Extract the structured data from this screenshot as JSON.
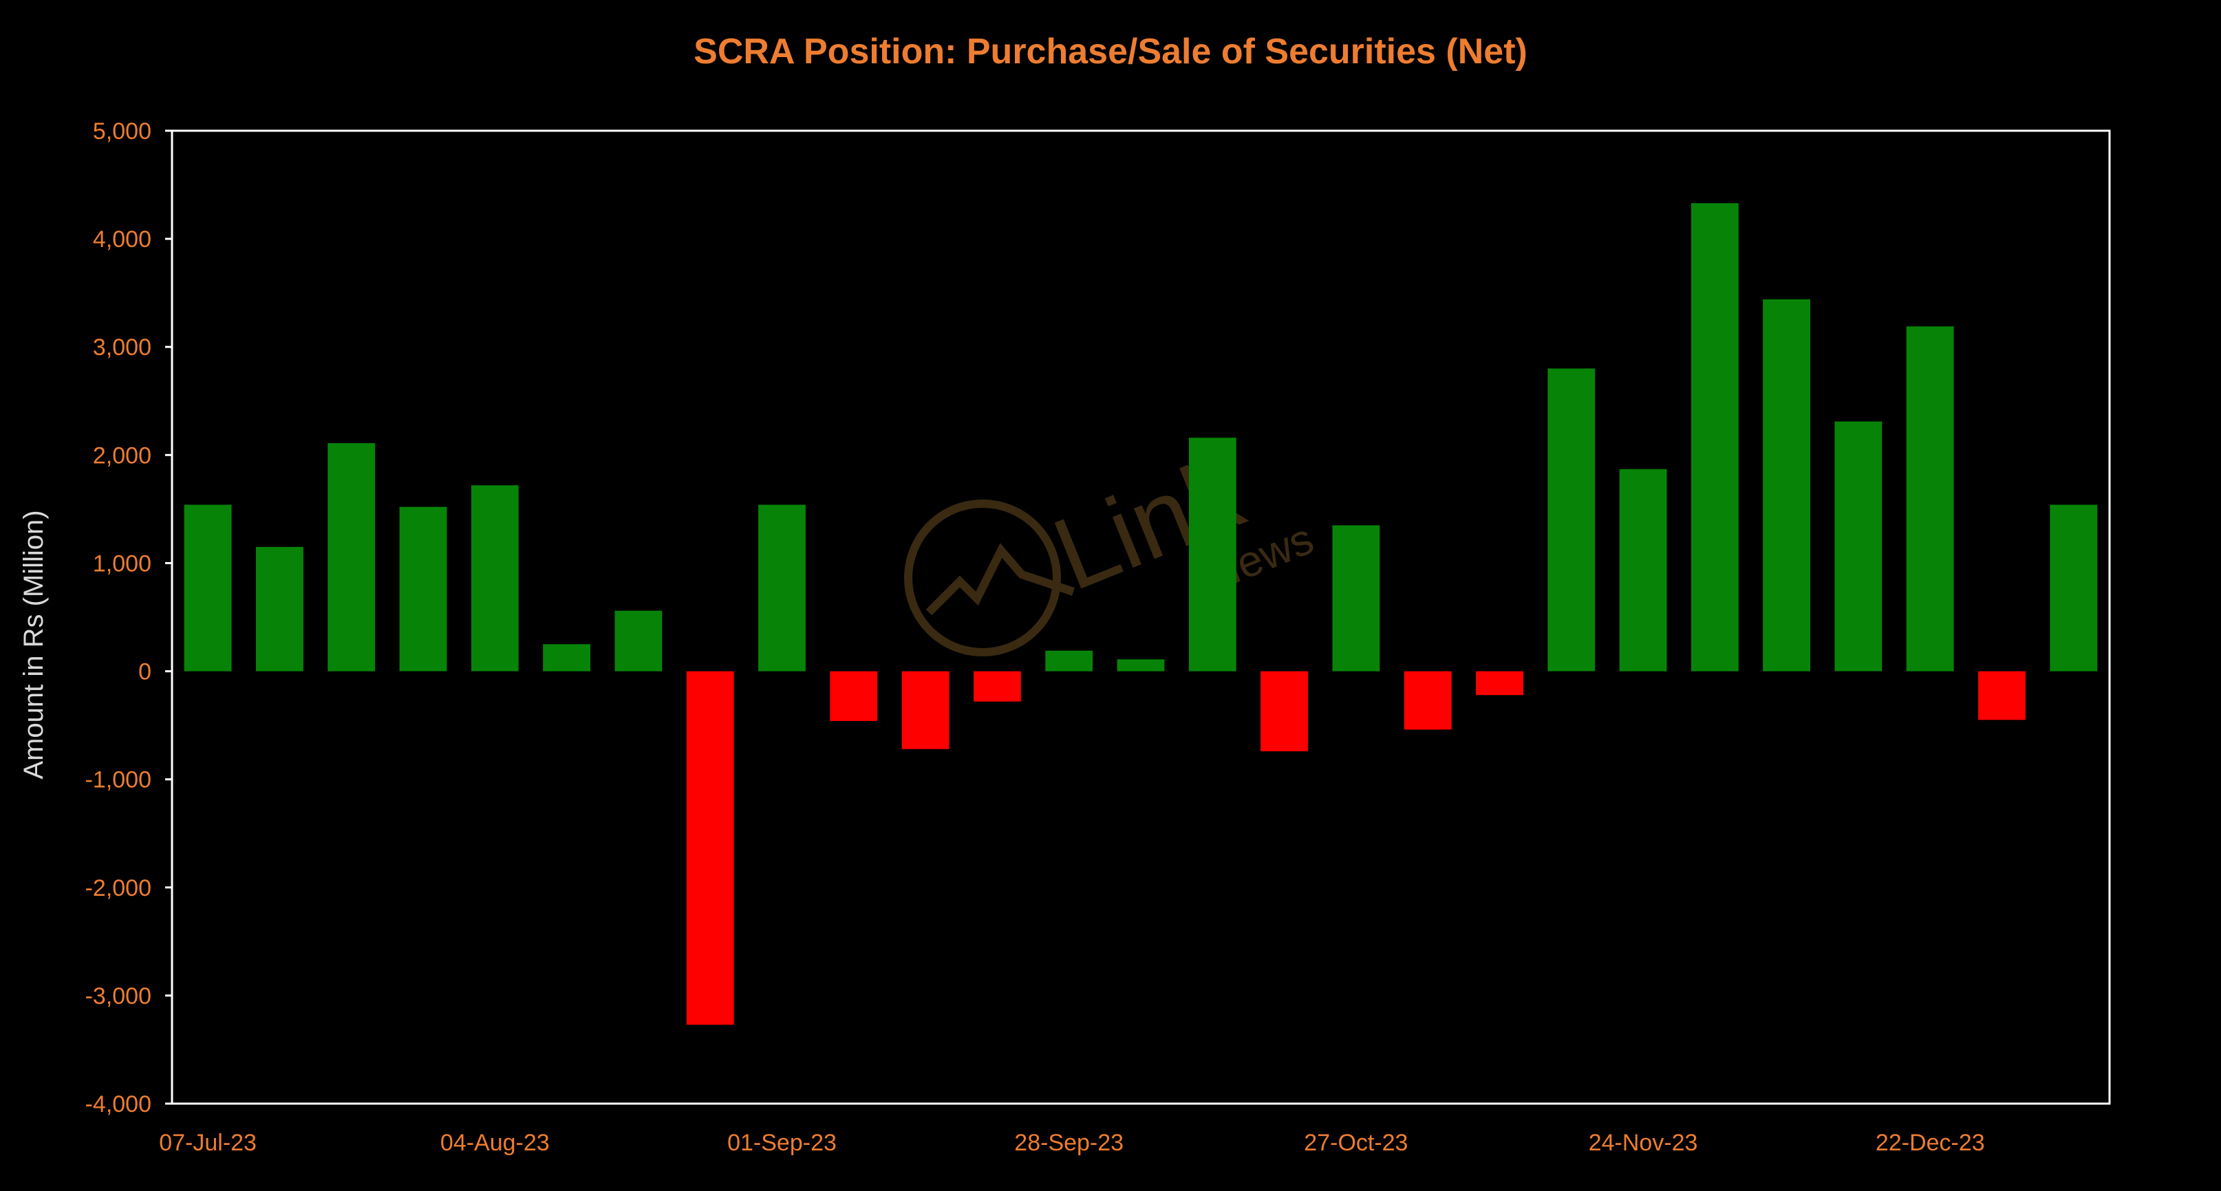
{
  "colors": {
    "background": "#000000",
    "title": "#ED7D31",
    "tick_label": "#ED7D31",
    "axis_label": "#D9D9D9",
    "axis_line": "#FFFFFF",
    "positive_bar": "#078407",
    "negative_bar": "#FF0000",
    "watermark": "#3a2a12"
  },
  "watermark": {
    "main": "Link",
    "sub": "News"
  },
  "chart_data": {
    "type": "bar",
    "title": "SCRA Position: Purchase/Sale of Securities (Net)",
    "xlabel": "",
    "ylabel": "Amount in Rs (Million)",
    "ylim": [
      -4000,
      5000
    ],
    "ytick_values": [
      5000,
      4000,
      3000,
      2000,
      1000,
      0,
      -1000,
      -2000,
      -3000,
      -4000
    ],
    "ytick_labels": [
      "5,000",
      "4,000",
      "3,000",
      "2,000",
      "1,000",
      "0",
      "-1,000",
      "-2,000",
      "-3,000",
      "-4,000"
    ],
    "xtick_labels": [
      {
        "label": "07-Jul-23",
        "category_index": 0
      },
      {
        "label": "04-Aug-23",
        "category_index": 4
      },
      {
        "label": "01-Sep-23",
        "category_index": 8
      },
      {
        "label": "28-Sep-23",
        "category_index": 12
      },
      {
        "label": "27-Oct-23",
        "category_index": 16
      },
      {
        "label": "24-Nov-23",
        "category_index": 20
      },
      {
        "label": "22-Dec-23",
        "category_index": 24
      }
    ],
    "grid": false,
    "legend": "none",
    "series": [
      {
        "values": [
          1540,
          1150,
          2110,
          1520,
          1720,
          250,
          560,
          -3270,
          1540,
          -460,
          -720,
          -280,
          190,
          110,
          2160,
          -740,
          1350,
          -540,
          -220,
          2800,
          1870,
          4330,
          3440,
          2310,
          3190,
          -450,
          1540
        ]
      }
    ]
  }
}
